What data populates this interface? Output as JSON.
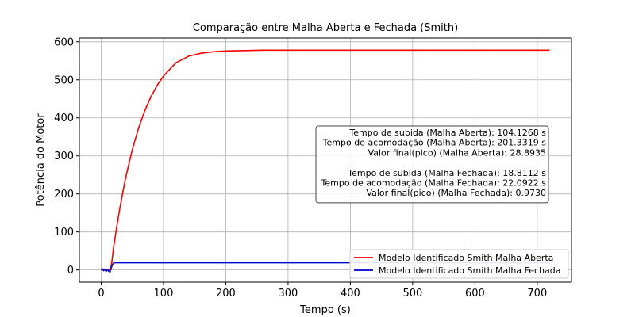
{
  "chart_data": {
    "type": "line",
    "title": "Comparação entre Malha Aberta e Fechada (Smith)",
    "xlabel": "Tempo (s)",
    "ylabel": "Potência do Motor",
    "xlim": [
      -35,
      755
    ],
    "ylim": [
      -32,
      610
    ],
    "xticks": [
      0,
      100,
      200,
      300,
      400,
      500,
      600,
      700
    ],
    "yticks": [
      0,
      100,
      200,
      300,
      400,
      500,
      600
    ],
    "grid": true,
    "legend_position": "bottom-right",
    "series": [
      {
        "name": "Modelo Identificado Smith Malha Aberta",
        "color": "#ff0000",
        "x": [
          0,
          5,
          10,
          15,
          17,
          20,
          25,
          30,
          35,
          40,
          50,
          60,
          70,
          80,
          90,
          100,
          120,
          140,
          160,
          180,
          200,
          230,
          260,
          300,
          350,
          400,
          500,
          600,
          720
        ],
        "y": [
          0,
          0,
          0,
          0,
          20,
          60,
          114,
          163,
          207,
          248,
          317,
          373,
          419,
          456,
          486,
          510,
          545,
          562,
          570,
          574,
          576,
          577,
          578,
          578,
          578,
          578,
          578,
          578,
          578
        ]
      },
      {
        "name": "Modelo Identificado Smith Malha Fechada",
        "color": "#0000cc",
        "x": [
          0,
          2,
          4,
          6,
          8,
          10,
          12,
          14,
          16,
          18,
          20,
          22,
          25,
          30,
          50,
          100,
          200,
          400,
          600,
          720
        ],
        "y": [
          0,
          3,
          -2,
          2,
          -4,
          1,
          -3,
          -6,
          4,
          14,
          18,
          19,
          19,
          19,
          19,
          19,
          19,
          19,
          19,
          19
        ]
      }
    ],
    "annotation_lines": [
      "Tempo de subida (Malha Aberta): 104.1268 s",
      "Tempo de acomodação (Malha Aberta): 201.3319 s",
      "Valor final(pico) (Malha Aberta): 28.8935",
      "",
      "Tempo de subida (Malha Fechada): 18.8112 s",
      "Tempo de acomodação (Malha Fechada): 22.0922 s",
      "Valor final(pico) (Malha Fechada): 0.9730"
    ]
  }
}
